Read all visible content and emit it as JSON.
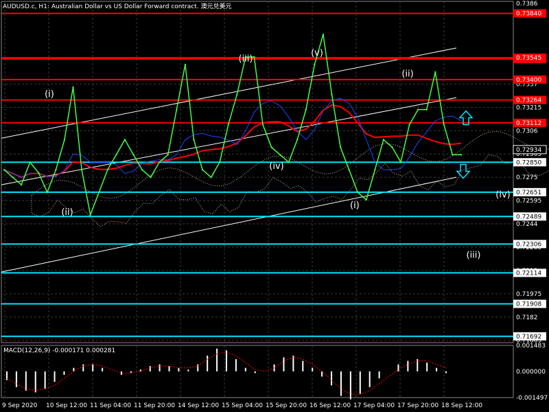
{
  "header": {
    "symbol_timeframe": "AUDUSD.c, H1:",
    "description": "Australian Dollar vs US Dollar Forward contract. 澳元兑美元"
  },
  "colors": {
    "background": "#000000",
    "grid": "#3a3a3a",
    "resistance": "#ff0000",
    "support": "#00e5ff",
    "price": "#44ff44",
    "channel": "#ffffff",
    "ma_red": "#ff0000",
    "ma_blue": "#2244ff",
    "cloud": "#d8b8a0",
    "macd_hist": "#ffffff",
    "macd_signal": "#ff0000",
    "arrows": "#00e5ff"
  },
  "chart_data": {
    "type": "line",
    "symbol": "AUDUSD.c",
    "timeframe": "H1",
    "ylim": [
      0.7165,
      0.7392
    ],
    "grid": true,
    "x_ticks": [
      "9 Sep 2020",
      "10 Sep 12:00",
      "11 Sep 04:00",
      "11 Sep 20:00",
      "14 Sep 12:00",
      "15 Sep 04:00",
      "15 Sep 20:00",
      "16 Sep 12:00",
      "17 Sep 04:00",
      "17 Sep 20:00",
      "18 Sep 12:00"
    ],
    "y_ticks": [
      0.7337,
      0.73215,
      0.7306,
      0.72905,
      0.7275,
      0.72595,
      0.7244,
      0.72285,
      0.7213,
      0.71975,
      0.7182,
      0.71665
    ],
    "resistance_levels": [
      0.7384,
      0.73537,
      0.73545,
      0.734,
      0.73264,
      0.73112
    ],
    "support_levels": [
      0.7285,
      0.72651,
      0.72489,
      0.72306,
      0.72114,
      0.71908,
      0.71692
    ],
    "current_price": 0.72934,
    "top_partial_label": "0.7386",
    "series": [
      {
        "name": "",
        "values": [
          0.728,
          0.7275,
          0.727,
          0.7285,
          0.7278,
          0.7265,
          0.728,
          0.73,
          0.7335,
          0.728,
          0.725,
          0.7265,
          0.728,
          0.729,
          0.73,
          0.729,
          0.728,
          0.7275,
          0.7285,
          0.729,
          0.732,
          0.735,
          0.73,
          0.728,
          0.7275,
          0.7285,
          0.731,
          0.733,
          0.7355,
          0.7355,
          0.731,
          0.7295,
          0.729,
          0.7285,
          0.73,
          0.732,
          0.735,
          0.737,
          0.733,
          0.7295,
          0.728,
          0.7265,
          0.726,
          0.728,
          0.73,
          0.7295,
          0.7285,
          0.731,
          0.732,
          0.732,
          0.7345,
          0.731,
          0.729,
          0.729
        ]
      }
    ],
    "wave_labels": [
      "(i)",
      "(ii)",
      "(iii)",
      "(iv)",
      "(v)",
      "(i)",
      "(ii)",
      "(iv)",
      "(iii)"
    ],
    "macd": {
      "label": "MACD(12,26,9) -0.000171 0.000281",
      "ylim": [
        -0.001497,
        0.001483
      ],
      "ticks": [
        "0.001483",
        "0.000000",
        "-0.001497"
      ],
      "histogram": [
        -0.0005,
        -0.0009,
        -0.0011,
        -0.0012,
        -0.001,
        -0.0006,
        -0.0002,
        0.0002,
        0.0004,
        0.0004,
        0.0002,
        0.0,
        -0.0002,
        -0.0001,
        0.0001,
        0.0003,
        0.0004,
        0.0003,
        0.0002,
        0.0001,
        0.0004,
        0.0009,
        0.0013,
        0.0012,
        0.0007,
        0.0002,
        -0.0001,
        0.0,
        0.0004,
        0.0008,
        0.0009,
        0.0006,
        0.0002,
        -0.0003,
        -0.0008,
        -0.0014,
        -0.0016,
        -0.0013,
        -0.0009,
        -0.0004,
        0.0,
        0.0004,
        0.0006,
        0.0007,
        0.0005,
        0.0002,
        -0.0001
      ],
      "signal": [
        -0.0004,
        -0.0007,
        -0.001,
        -0.0011,
        -0.001,
        -0.0008,
        -0.0004,
        0.0,
        0.0003,
        0.0004,
        0.0003,
        0.0001,
        -0.0001,
        -0.0001,
        0.0,
        0.0002,
        0.0003,
        0.0003,
        0.0002,
        0.0002,
        0.0003,
        0.0007,
        0.001,
        0.0011,
        0.0009,
        0.0005,
        0.0001,
        0.0,
        0.0002,
        0.0006,
        0.0008,
        0.0007,
        0.0004,
        0.0,
        -0.0005,
        -0.001,
        -0.0013,
        -0.0013,
        -0.0011,
        -0.0007,
        -0.0003,
        0.0001,
        0.0004,
        0.0006,
        0.0006,
        0.0004,
        0.0002
      ]
    }
  }
}
